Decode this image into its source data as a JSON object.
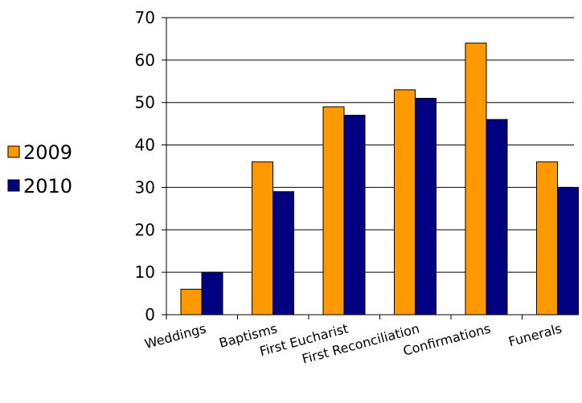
{
  "chart_data": {
    "type": "bar",
    "title": "",
    "xlabel": "",
    "ylabel": "",
    "categories": [
      "Weddings",
      "Baptisms",
      "First Eucharist",
      "First Reconciliation",
      "Confirmations",
      "Funerals"
    ],
    "series": [
      {
        "name": "2009",
        "values": [
          6,
          36,
          49,
          53,
          64,
          36
        ],
        "color": "#FF9900"
      },
      {
        "name": "2010",
        "values": [
          10,
          29,
          47,
          51,
          46,
          30
        ],
        "color": "#000080"
      }
    ],
    "ylim": [
      0,
      70
    ],
    "yticks": [
      0,
      10,
      20,
      30,
      40,
      50,
      60,
      70
    ],
    "grid": true,
    "legend": {
      "position": "left"
    },
    "colors": {
      "gridline": "#000000",
      "axis": "#000000",
      "bar_border": "#000000"
    }
  }
}
